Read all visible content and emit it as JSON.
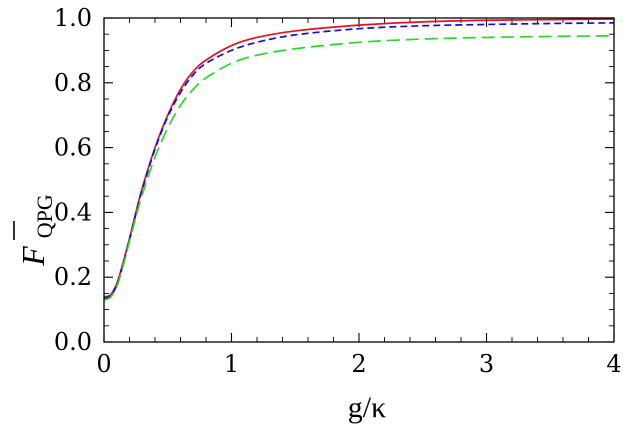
{
  "chart_data": {
    "type": "line",
    "title": "",
    "xlabel": "g/κ",
    "ylabel": {
      "symbol": "F",
      "subscript": "QPG"
    },
    "xlim": [
      0,
      4
    ],
    "ylim": [
      0,
      1.0
    ],
    "x_ticks": [
      0,
      1,
      2,
      3,
      4
    ],
    "x_tick_labels": [
      "0",
      "1",
      "2",
      "3",
      "4"
    ],
    "y_ticks": [
      0,
      0.2,
      0.4,
      0.6,
      0.8,
      1.0
    ],
    "y_tick_labels": [
      "0.0",
      "0.2",
      "0.4",
      "0.6",
      "0.8",
      "1.0"
    ],
    "grid": false,
    "legend": "none",
    "series": [
      {
        "color": "#e8101e",
        "dash": "solid",
        "x": [
          0.0,
          0.05,
          0.1,
          0.15,
          0.2,
          0.25,
          0.3,
          0.4,
          0.5,
          0.6,
          0.7,
          0.8,
          1.0,
          1.2,
          1.5,
          2.0,
          2.5,
          3.0,
          3.5,
          4.0
        ],
        "values": [
          0.14,
          0.145,
          0.18,
          0.245,
          0.32,
          0.4,
          0.475,
          0.6,
          0.7,
          0.78,
          0.835,
          0.87,
          0.915,
          0.94,
          0.96,
          0.978,
          0.988,
          0.993,
          0.995,
          0.997
        ]
      },
      {
        "color": "#1010d8",
        "dash": "short",
        "x": [
          0.0,
          0.05,
          0.1,
          0.15,
          0.2,
          0.25,
          0.3,
          0.4,
          0.5,
          0.6,
          0.7,
          0.8,
          1.0,
          1.2,
          1.5,
          2.0,
          2.5,
          3.0,
          3.5,
          4.0
        ],
        "values": [
          0.135,
          0.142,
          0.175,
          0.24,
          0.315,
          0.395,
          0.47,
          0.595,
          0.695,
          0.77,
          0.825,
          0.86,
          0.9,
          0.925,
          0.948,
          0.967,
          0.976,
          0.98,
          0.983,
          0.985
        ]
      },
      {
        "color": "#28d828",
        "dash": "long",
        "x": [
          0.0,
          0.05,
          0.1,
          0.15,
          0.2,
          0.25,
          0.3,
          0.4,
          0.5,
          0.6,
          0.7,
          0.8,
          1.0,
          1.2,
          1.5,
          2.0,
          2.5,
          3.0,
          3.5,
          4.0
        ],
        "values": [
          0.13,
          0.138,
          0.17,
          0.235,
          0.31,
          0.385,
          0.455,
          0.57,
          0.66,
          0.73,
          0.78,
          0.815,
          0.86,
          0.885,
          0.905,
          0.925,
          0.935,
          0.94,
          0.943,
          0.945
        ]
      }
    ]
  }
}
